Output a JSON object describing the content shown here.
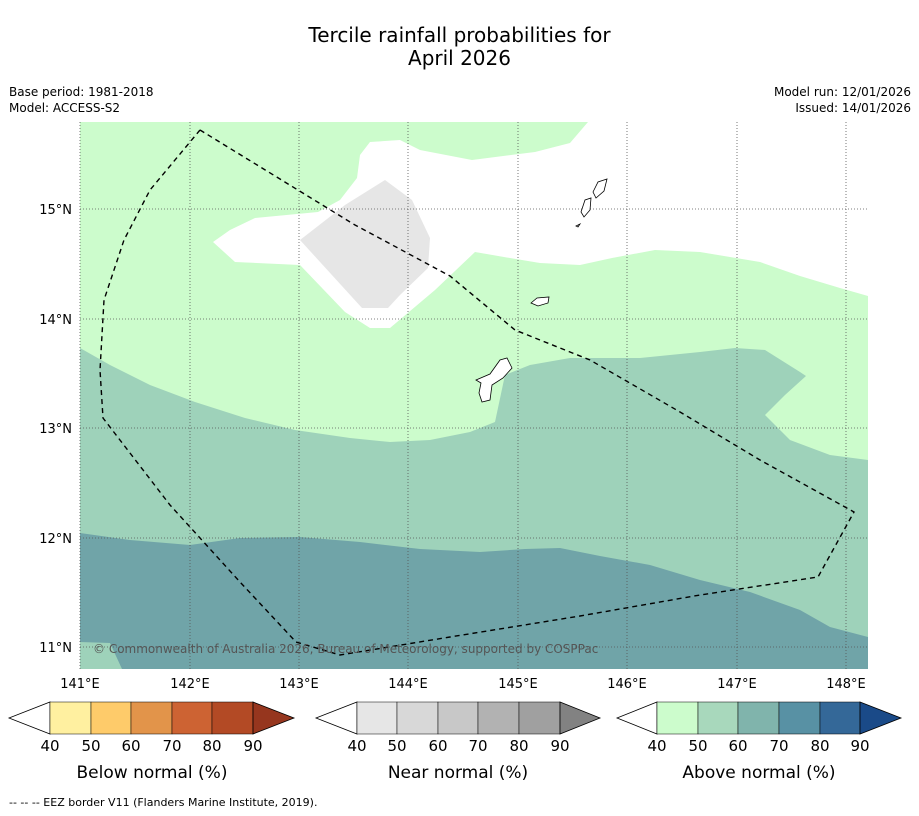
{
  "title": {
    "line1": "Tercile rainfall probabilities for",
    "line2": "April 2026"
  },
  "meta": {
    "base_period": "Base period: 1981-2018",
    "model": "Model: ACCESS-S2",
    "model_run": "Model run: 12/01/2026",
    "issued": "Issued: 14/01/2026"
  },
  "map": {
    "lat_labels": [
      "15°N",
      "14°N",
      "13°N",
      "12°N",
      "11°N"
    ],
    "lon_labels": [
      "141°E",
      "142°E",
      "143°E",
      "144°E",
      "145°E",
      "146°E",
      "147°E",
      "148°E"
    ],
    "copyright": "© Commonwealth of Australia 2026, Bureau of Meteorology, supported by COSPPac",
    "colors": {
      "above_40": "#ccfccc",
      "above_50": "#9ed2ba",
      "above_60": "#70a4a8",
      "near_40": "#e6e6e6"
    }
  },
  "colorbars": [
    {
      "label": "Below normal (%)",
      "ticks": [
        "40",
        "50",
        "60",
        "70",
        "80",
        "90"
      ],
      "colors": [
        "#fff0a0",
        "#fecb6a",
        "#e2944a",
        "#cd6333",
        "#b34a25",
        "#96361e"
      ]
    },
    {
      "label": "Near normal (%)",
      "ticks": [
        "40",
        "50",
        "60",
        "70",
        "80",
        "90"
      ],
      "colors": [
        "#e6e6e6",
        "#d8d8d8",
        "#c8c8c8",
        "#b2b2b2",
        "#a0a0a0",
        "#828282"
      ]
    },
    {
      "label": "Above normal (%)",
      "ticks": [
        "40",
        "50",
        "60",
        "70",
        "80",
        "90"
      ],
      "colors": [
        "#ccfccc",
        "#a8d8bc",
        "#80b4ac",
        "#5891a4",
        "#346898",
        "#1a4a88"
      ]
    }
  ],
  "footer": "--  --  -- EEZ border V11 (Flanders Marine Institute, 2019)."
}
